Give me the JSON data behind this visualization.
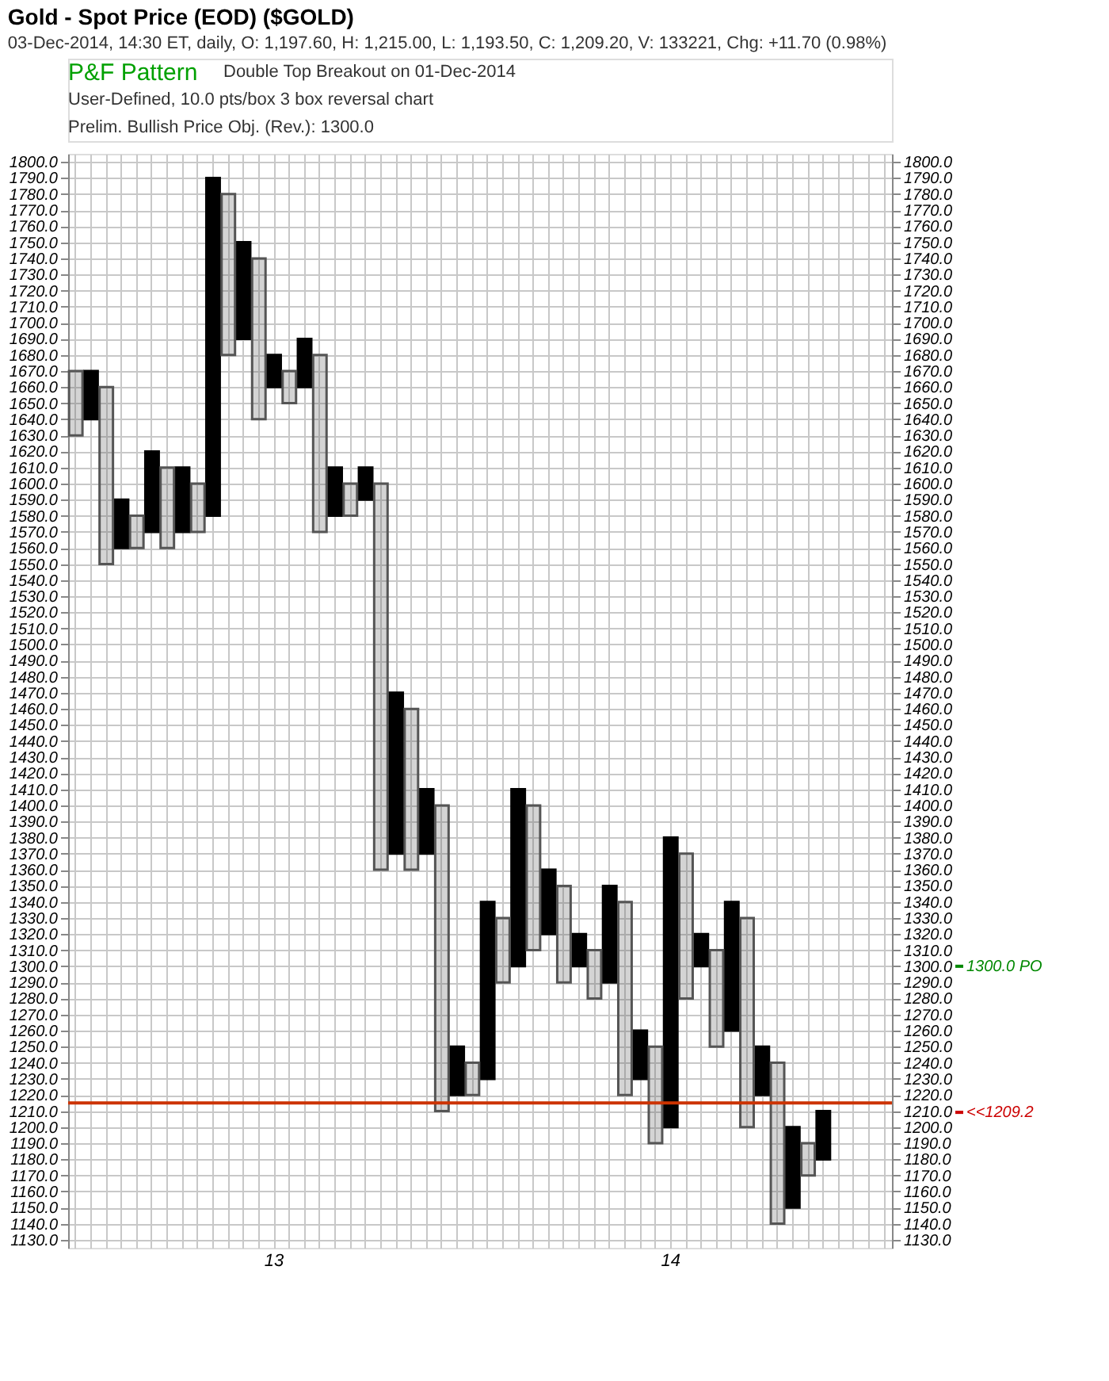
{
  "chart_data": {
    "type": "bar",
    "title": "Gold - Spot Price (EOD) ($GOLD)",
    "subtitle": "03-Dec-2014, 14:30 ET, daily, O: 1,197.60, H: 1,215.00, L: 1,193.50, C: 1,209.20, V: 133221, Chg: +11.70 (0.98%)",
    "annotations": [
      "P&F Pattern",
      "Double Top Breakout on 01-Dec-2014",
      "User-Defined, 10.0 pts/box 3 box reversal chart",
      "Prelim. Bullish Price Obj. (Rev.): 1300.0"
    ],
    "categories": [
      null,
      null,
      null,
      null,
      null,
      null,
      null,
      null,
      null,
      null,
      null,
      null,
      null,
      "13",
      null,
      null,
      null,
      null,
      null,
      null,
      null,
      null,
      null,
      null,
      null,
      null,
      null,
      null,
      null,
      null,
      null,
      null,
      null,
      null,
      null,
      null,
      null,
      null,
      null,
      "14",
      null,
      null,
      null,
      null,
      null,
      null,
      null,
      null,
      null,
      null,
      null,
      null,
      null,
      null
    ],
    "series": [
      {
        "color": "#000000",
        "base": [
          null,
          1640,
          null,
          1560,
          null,
          1570,
          null,
          1570,
          null,
          1580,
          null,
          1690,
          null,
          1660,
          null,
          1660,
          null,
          1580,
          null,
          1590,
          null,
          1370,
          null,
          1370,
          null,
          1220,
          null,
          1230,
          null,
          1300,
          null,
          1320,
          null,
          1300,
          null,
          1290,
          null,
          1230,
          null,
          1200,
          null,
          1300,
          null,
          1260,
          null,
          1220,
          null,
          1150,
          null,
          1180,
          null,
          null,
          null,
          null
        ],
        "values": [
          null,
          30,
          null,
          30,
          null,
          50,
          null,
          40,
          null,
          210,
          null,
          60,
          null,
          20,
          null,
          30,
          null,
          30,
          null,
          20,
          null,
          100,
          null,
          40,
          null,
          30,
          null,
          110,
          null,
          110,
          null,
          40,
          null,
          20,
          null,
          60,
          null,
          30,
          null,
          180,
          null,
          20,
          null,
          80,
          null,
          30,
          null,
          50,
          null,
          30,
          null,
          null,
          null,
          null
        ]
      },
      {
        "color": "#555555",
        "base": [
          1630,
          null,
          1550,
          null,
          1560,
          null,
          1560,
          null,
          1570,
          null,
          1680,
          null,
          1640,
          null,
          1650,
          null,
          1570,
          null,
          1580,
          null,
          1360,
          null,
          1360,
          null,
          1210,
          null,
          1220,
          null,
          1290,
          null,
          1310,
          null,
          1290,
          null,
          1280,
          null,
          1220,
          null,
          1190,
          null,
          1280,
          null,
          1250,
          null,
          1200,
          null,
          1140,
          null,
          1170,
          null,
          null,
          null,
          null,
          null
        ],
        "values": [
          40,
          null,
          110,
          null,
          20,
          null,
          50,
          null,
          30,
          null,
          100,
          null,
          100,
          null,
          20,
          null,
          110,
          null,
          20,
          null,
          240,
          null,
          100,
          null,
          190,
          null,
          20,
          null,
          40,
          null,
          90,
          null,
          60,
          null,
          30,
          null,
          120,
          null,
          60,
          null,
          90,
          null,
          60,
          null,
          130,
          null,
          100,
          null,
          20,
          null,
          null,
          null,
          null,
          null
        ]
      }
    ],
    "ylim": [
      1125,
      1805
    ],
    "yticks": [
      {
        "value": 1130,
        "label": "1130.0"
      },
      {
        "value": 1140,
        "label": "1140.0"
      },
      {
        "value": 1150,
        "label": "1150.0"
      },
      {
        "value": 1160,
        "label": "1160.0"
      },
      {
        "value": 1170,
        "label": "1170.0"
      },
      {
        "value": 1180,
        "label": "1180.0"
      },
      {
        "value": 1190,
        "label": "1190.0"
      },
      {
        "value": 1200,
        "label": "1200.0"
      },
      {
        "value": 1210,
        "label": "1210.0"
      },
      {
        "value": 1220,
        "label": "1220.0"
      },
      {
        "value": 1230,
        "label": "1230.0"
      },
      {
        "value": 1240,
        "label": "1240.0"
      },
      {
        "value": 1250,
        "label": "1250.0"
      },
      {
        "value": 1260,
        "label": "1260.0"
      },
      {
        "value": 1270,
        "label": "1270.0"
      },
      {
        "value": 1280,
        "label": "1280.0"
      },
      {
        "value": 1290,
        "label": "1290.0"
      },
      {
        "value": 1300,
        "label": "1300.0"
      },
      {
        "value": 1310,
        "label": "1310.0"
      },
      {
        "value": 1320,
        "label": "1320.0"
      },
      {
        "value": 1330,
        "label": "1330.0"
      },
      {
        "value": 1340,
        "label": "1340.0"
      },
      {
        "value": 1350,
        "label": "1350.0"
      },
      {
        "value": 1360,
        "label": "1360.0"
      },
      {
        "value": 1370,
        "label": "1370.0"
      },
      {
        "value": 1380,
        "label": "1380.0"
      },
      {
        "value": 1390,
        "label": "1390.0"
      },
      {
        "value": 1400,
        "label": "1400.0"
      },
      {
        "value": 1410,
        "label": "1410.0"
      },
      {
        "value": 1420,
        "label": "1420.0"
      },
      {
        "value": 1430,
        "label": "1430.0"
      },
      {
        "value": 1440,
        "label": "1440.0"
      },
      {
        "value": 1450,
        "label": "1450.0"
      },
      {
        "value": 1460,
        "label": "1460.0"
      },
      {
        "value": 1470,
        "label": "1470.0"
      },
      {
        "value": 1480,
        "label": "1480.0"
      },
      {
        "value": 1490,
        "label": "1490.0"
      },
      {
        "value": 1500,
        "label": "1500.0"
      },
      {
        "value": 1510,
        "label": "1510.0"
      },
      {
        "value": 1520,
        "label": "1520.0"
      },
      {
        "value": 1530,
        "label": "1530.0"
      },
      {
        "value": 1540,
        "label": "1540.0"
      },
      {
        "value": 1550,
        "label": "1550.0"
      },
      {
        "value": 1560,
        "label": "1560.0"
      },
      {
        "value": 1570,
        "label": "1570.0"
      },
      {
        "value": 1580,
        "label": "1580.0"
      },
      {
        "value": 1590,
        "label": "1590.0"
      },
      {
        "value": 1600,
        "label": "1600.0"
      },
      {
        "value": 1610,
        "label": "1610.0"
      },
      {
        "value": 1620,
        "label": "1620.0"
      },
      {
        "value": 1630,
        "label": "1630.0"
      },
      {
        "value": 1640,
        "label": "1640.0"
      },
      {
        "value": 1650,
        "label": "1650.0"
      },
      {
        "value": 1660,
        "label": "1660.0"
      },
      {
        "value": 1670,
        "label": "1670.0"
      },
      {
        "value": 1680,
        "label": "1680.0"
      },
      {
        "value": 1690,
        "label": "1690.0"
      },
      {
        "value": 1700,
        "label": "1700.0"
      },
      {
        "value": 1710,
        "label": "1710.0"
      },
      {
        "value": 1720,
        "label": "1720.0"
      },
      {
        "value": 1730,
        "label": "1730.0"
      },
      {
        "value": 1740,
        "label": "1740.0"
      },
      {
        "value": 1750,
        "label": "1750.0"
      },
      {
        "value": 1760,
        "label": "1760.0"
      },
      {
        "value": 1770,
        "label": "1770.0"
      },
      {
        "value": 1780,
        "label": "1780.0"
      },
      {
        "value": 1790,
        "label": "1790.0"
      },
      {
        "value": 1800,
        "label": "1800.0"
      }
    ],
    "y2lim": [
      1125,
      1805
    ],
    "y2ticks": [
      {
        "value": 1130,
        "label": "1130.0"
      },
      {
        "value": 1140,
        "label": "1140.0"
      },
      {
        "value": 1150,
        "label": "1150.0"
      },
      {
        "value": 1160,
        "label": "1160.0"
      },
      {
        "value": 1170,
        "label": "1170.0"
      },
      {
        "value": 1180,
        "label": "1180.0"
      },
      {
        "value": 1190,
        "label": "1190.0"
      },
      {
        "value": 1200,
        "label": "1200.0"
      },
      {
        "value": 1210,
        "label": "1210.0"
      },
      {
        "value": 1220,
        "label": "1220.0"
      },
      {
        "value": 1230,
        "label": "1230.0"
      },
      {
        "value": 1240,
        "label": "1240.0"
      },
      {
        "value": 1250,
        "label": "1250.0"
      },
      {
        "value": 1260,
        "label": "1260.0"
      },
      {
        "value": 1270,
        "label": "1270.0"
      },
      {
        "value": 1280,
        "label": "1280.0"
      },
      {
        "value": 1290,
        "label": "1290.0"
      },
      {
        "value": 1300,
        "label": "1300.0"
      },
      {
        "value": 1310,
        "label": "1310.0"
      },
      {
        "value": 1320,
        "label": "1320.0"
      },
      {
        "value": 1330,
        "label": "1330.0"
      },
      {
        "value": 1340,
        "label": "1340.0"
      },
      {
        "value": 1350,
        "label": "1350.0"
      },
      {
        "value": 1360,
        "label": "1360.0"
      },
      {
        "value": 1370,
        "label": "1370.0"
      },
      {
        "value": 1380,
        "label": "1380.0"
      },
      {
        "value": 1390,
        "label": "1390.0"
      },
      {
        "value": 1400,
        "label": "1400.0"
      },
      {
        "value": 1410,
        "label": "1410.0"
      },
      {
        "value": 1420,
        "label": "1420.0"
      },
      {
        "value": 1430,
        "label": "1430.0"
      },
      {
        "value": 1440,
        "label": "1440.0"
      },
      {
        "value": 1450,
        "label": "1450.0"
      },
      {
        "value": 1460,
        "label": "1460.0"
      },
      {
        "value": 1470,
        "label": "1470.0"
      },
      {
        "value": 1480,
        "label": "1480.0"
      },
      {
        "value": 1490,
        "label": "1490.0"
      },
      {
        "value": 1500,
        "label": "1500.0"
      },
      {
        "value": 1510,
        "label": "1510.0"
      },
      {
        "value": 1520,
        "label": "1520.0"
      },
      {
        "value": 1530,
        "label": "1530.0"
      },
      {
        "value": 1540,
        "label": "1540.0"
      },
      {
        "value": 1550,
        "label": "1550.0"
      },
      {
        "value": 1560,
        "label": "1560.0"
      },
      {
        "value": 1570,
        "label": "1570.0"
      },
      {
        "value": 1580,
        "label": "1580.0"
      },
      {
        "value": 1590,
        "label": "1590.0"
      },
      {
        "value": 1600,
        "label": "1600.0"
      },
      {
        "value": 1610,
        "label": "1610.0"
      },
      {
        "value": 1620,
        "label": "1620.0"
      },
      {
        "value": 1630,
        "label": "1630.0"
      },
      {
        "value": 1640,
        "label": "1640.0"
      },
      {
        "value": 1650,
        "label": "1650.0"
      },
      {
        "value": 1660,
        "label": "1660.0"
      },
      {
        "value": 1670,
        "label": "1670.0"
      },
      {
        "value": 1680,
        "label": "1680.0"
      },
      {
        "value": 1690,
        "label": "1690.0"
      },
      {
        "value": 1700,
        "label": "1700.0"
      },
      {
        "value": 1710,
        "label": "1710.0"
      },
      {
        "value": 1720,
        "label": "1720.0"
      },
      {
        "value": 1730,
        "label": "1730.0"
      },
      {
        "value": 1740,
        "label": "1740.0"
      },
      {
        "value": 1750,
        "label": "1750.0"
      },
      {
        "value": 1760,
        "label": "1760.0"
      },
      {
        "value": 1770,
        "label": "1770.0"
      },
      {
        "value": 1780,
        "label": "1780.0"
      },
      {
        "value": 1790,
        "label": "1790.0"
      },
      {
        "value": 1800,
        "label": "1800.0"
      }
    ],
    "ref_lines": [
      {
        "axis": "y",
        "value": 1215,
        "color": "#cc3300"
      },
      {
        "axis": "y",
        "value": 1300,
        "label": "1300.0 PO",
        "color": "#008800"
      },
      {
        "axis": "y",
        "value": 1209.2,
        "label": "<<1209.2",
        "color": "#cc0000"
      }
    ],
    "grid": true
  }
}
